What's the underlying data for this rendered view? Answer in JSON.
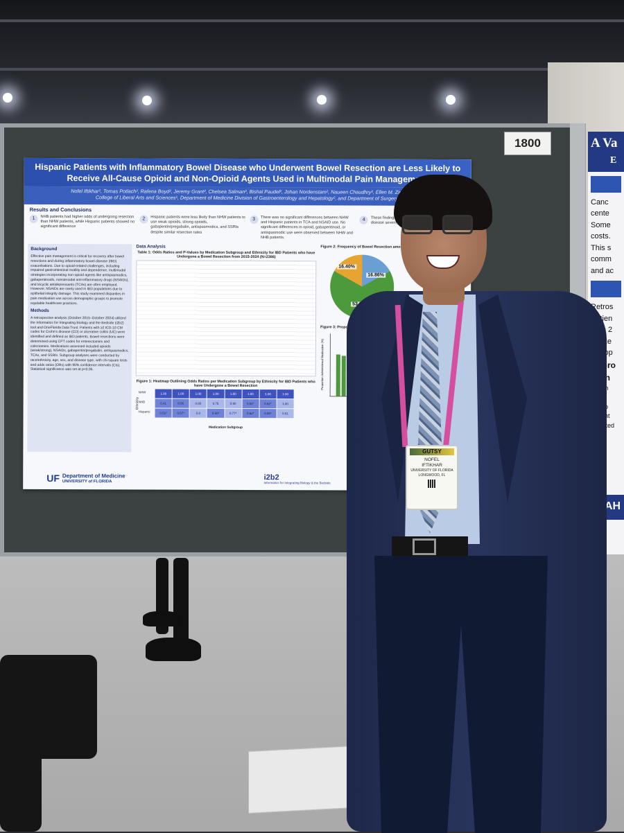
{
  "board_number": "1800",
  "poster": {
    "title": "Hispanic Patients with Inflammatory Bowel Disease who Underwent Bowel Resection are Less Likely to Receive All-Cause Opioid and Non-Opioid Agents Used in Multimodal Pain Management",
    "authors": "Nofel Iftikhar¹, Tomas Potlach², Rafena Boyd², Jeremy Grant², Chelsea Salman², Bishal Paudel², Johan Nordenstam², Naueen Chaudhry², Ellen M. Zimmermann",
    "affiliations": "College of Liberal Arts and Sciences¹, Department of Medicine Division of Gastroenterology and Hepatology², and Department of Surgery³",
    "results_heading": "Results and Conclusions",
    "results": [
      {
        "num": "1",
        "text": "NHB patients had higher odds of undergoing resection than NHW patients, while Hispanic patients showed no significant difference"
      },
      {
        "num": "2",
        "text": "Hispanic patients were less likely than NHW patients to use weak opioids, strong opioids, gabapentin/pregabalin, antispasmodics, and SSRIs despite similar resection rates"
      },
      {
        "num": "3",
        "text": "There was no significant differences between NHW and Hispanic patients in TCA and NSAID use. No significant differences in opioid, gabapentinoid, or antispasmodic use were observed between NHW and NHB patients."
      },
      {
        "num": "4",
        "text": "These findings ... management ... resections. Th... disease severity ... on the basis of ..."
      }
    ],
    "background_heading": "Background",
    "background_text": "Effective pain management is critical for recovery after bowel resections and during inflammatory bowel disease (IBD) exacerbations. Due to opioid-related challenges, including impaired gastrointestinal motility and dependence, multimodal strategies incorporating non-opioid agents like antispasmodics, gabapentinoids, nonsteroidal anti-inflammatory drugs (NSAIDs), and tricyclic antidepressants (TCAs) are often employed. However, NSAIDs are rarely used in IBD populations due to epithelial integrity damage. This study examined disparities in pain medication use across demographic groups to promote equitable healthcare practices.",
    "methods_heading": "Methods",
    "methods_text": "A retrospective analysis (October 2015–October 2024) utilized the Informatics for Integrating Biology and the Bedside (i2b2) tool and OneFlorida Data Trust. Patients with ≥2 ICD-10 CM codes for Crohn's disease (CD) or ulcerative colitis (UC) were identified and defined as IBD patients. Bowel resections were determined using CPT codes for enterectomies and colectomies. Medications assessed included opioids (weak/strong), NSAIDs, gabapentin/pregabalin, antispasmodics, TCAs, and SSRIs. Subgroup analyses were conducted by race/ethnicity, age, sex, and disease type, with chi-square tests and odds ratios (ORs) with 95% confidence intervals (CIs). Statistical significance was set at p<0.05.",
    "analysis_heading": "Data Analysis",
    "table_caption": "Table 1: Odds Ratios and P-Values by Medication Subgroup and Ethnicity for IBD Patients who have Undergone a Bowel Resection from 2015-2024 (N=2366)",
    "heatmap_caption": "Figure 1: Heatmap Outlining Odds Ratios per Medication Subgroup by Ethnicity for IBD Patients who have Undergone a Bowel Resection",
    "heatmap_ylabel": "Ethnicity",
    "heatmap_xlabel": "Medication Subgroup",
    "heatmap_rows": [
      {
        "label": "NHW",
        "cells": [
          "1.00",
          "1.00",
          "1.00",
          "1.00",
          "1.00",
          "1.00",
          "1.00",
          "1.00"
        ]
      },
      {
        "label": "NHB",
        "cells": [
          "0.41",
          "0.56",
          "0.80",
          "0.75",
          "0.90",
          "0.51*",
          "0.62*",
          "1.00"
        ]
      },
      {
        "label": "Hispanic",
        "cells": [
          "0.51*",
          "0.67*",
          "0.8",
          "0.60*",
          "0.77*",
          "0.62*",
          "0.65*",
          "0.81"
        ]
      }
    ],
    "fig2_caption": "Figure 2: Frequency of Bowel Resection among Ethnic...",
    "pie_labels": [
      "16.40%",
      "16.86%",
      "53.68%"
    ],
    "fig3_caption": "Figure 3: Proportion of Et...",
    "fig3_ylabel": "Proportion Administered Medication (%)",
    "footer_dept": "Department of Medicine",
    "footer_univ": "UNIVERSITY of FLORIDA",
    "footer_i2b2": "i2b2",
    "footer_i2b2_sub": "Informatics for Integrating Biology & the Bedside"
  },
  "poster2": {
    "title": "A Va",
    "subtitle": "E",
    "lines": [
      "Canc",
      "cente",
      "Some",
      "costs.",
      "This s",
      "comm",
      "and ac"
    ],
    "lines2": [
      "Retros",
      "Patien",
      "from 2",
      "Utilize",
      "Periop"
    ],
    "lines3": [
      "er Gro",
      "aden",
      "mpreh",
      "edical",
      "rge sp",
      "re cent",
      "edicated"
    ],
    "logo_text": "AH"
  },
  "badge": {
    "event": "GUTSY",
    "name": "NOFEL",
    "surname": "IFTIKHAR",
    "org": "UNIVERSITY OF FLORIDA",
    "city": "LONGWOOD, FL"
  }
}
